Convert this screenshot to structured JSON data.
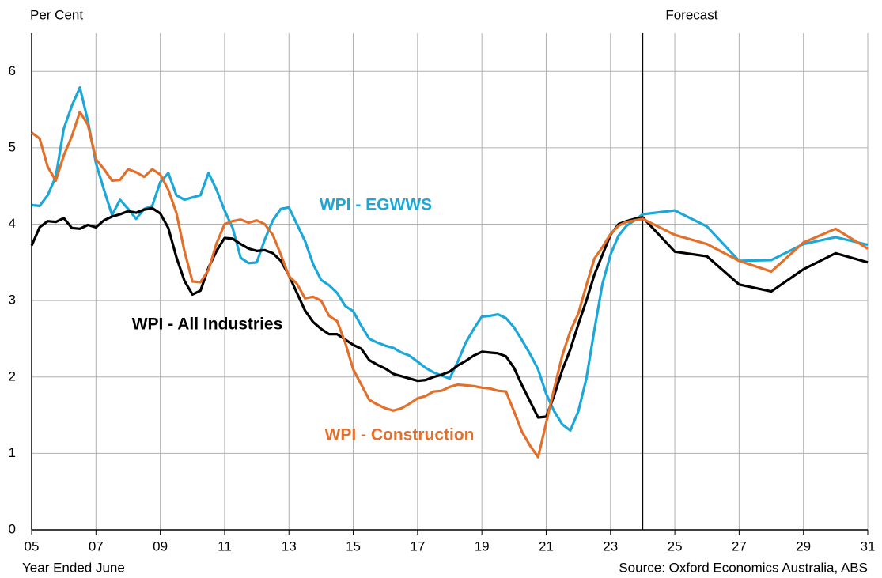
{
  "chart_data": {
    "type": "line",
    "y_label": "Per Cent",
    "x_label": "Year Ended June",
    "source": "Source: Oxford Economics Australia, ABS",
    "forecast_line": {
      "x": 2024,
      "label": "Forecast"
    },
    "xlim": [
      2005,
      2031
    ],
    "ylim": [
      0,
      6.5
    ],
    "xticks": [
      {
        "value": 2005,
        "label": "05"
      },
      {
        "value": 2007,
        "label": "07"
      },
      {
        "value": 2009,
        "label": "09"
      },
      {
        "value": 2011,
        "label": "11"
      },
      {
        "value": 2013,
        "label": "13"
      },
      {
        "value": 2015,
        "label": "15"
      },
      {
        "value": 2017,
        "label": "17"
      },
      {
        "value": 2019,
        "label": "19"
      },
      {
        "value": 2021,
        "label": "21"
      },
      {
        "value": 2023,
        "label": "23"
      },
      {
        "value": 2025,
        "label": "25"
      },
      {
        "value": 2027,
        "label": "27"
      },
      {
        "value": 2029,
        "label": "29"
      },
      {
        "value": 2031,
        "label": "31"
      }
    ],
    "yticks": [
      0,
      1,
      2,
      3,
      4,
      5,
      6
    ],
    "grid": true,
    "x": [
      2005,
      2005.25,
      2005.5,
      2005.75,
      2006,
      2006.25,
      2006.5,
      2006.75,
      2007,
      2007.25,
      2007.5,
      2007.75,
      2008,
      2008.25,
      2008.5,
      2008.75,
      2009,
      2009.25,
      2009.5,
      2009.75,
      2010,
      2010.25,
      2010.5,
      2010.75,
      2011,
      2011.25,
      2011.5,
      2011.75,
      2012,
      2012.25,
      2012.5,
      2012.75,
      2013,
      2013.25,
      2013.5,
      2013.75,
      2014,
      2014.25,
      2014.5,
      2014.75,
      2015,
      2015.25,
      2015.5,
      2015.75,
      2016,
      2016.25,
      2016.5,
      2016.75,
      2017,
      2017.25,
      2017.5,
      2017.75,
      2018,
      2018.25,
      2018.5,
      2018.75,
      2019,
      2019.25,
      2019.5,
      2019.75,
      2020,
      2020.25,
      2020.5,
      2020.75,
      2021,
      2021.25,
      2021.5,
      2021.75,
      2022,
      2022.25,
      2022.5,
      2022.75,
      2023,
      2023.25,
      2023.5,
      2023.75,
      2024,
      2025,
      2026,
      2027,
      2028,
      2029,
      2030,
      2031
    ],
    "series": [
      {
        "name": "WPI - EGWWS",
        "color": "#1ba8d9",
        "values": [
          4.25,
          4.24,
          4.38,
          4.62,
          5.25,
          5.55,
          5.79,
          5.35,
          4.8,
          4.45,
          4.12,
          4.32,
          4.2,
          4.07,
          4.2,
          4.24,
          4.55,
          4.67,
          4.38,
          4.32,
          4.35,
          4.38,
          4.67,
          4.45,
          4.18,
          3.95,
          3.56,
          3.49,
          3.5,
          3.8,
          4.05,
          4.2,
          4.22,
          4.0,
          3.78,
          3.48,
          3.27,
          3.2,
          3.1,
          2.93,
          2.86,
          2.67,
          2.5,
          2.45,
          2.41,
          2.38,
          2.32,
          2.28,
          2.2,
          2.12,
          2.06,
          2.02,
          1.98,
          2.2,
          2.45,
          2.63,
          2.79,
          2.8,
          2.82,
          2.77,
          2.65,
          2.48,
          2.3,
          2.1,
          1.78,
          1.55,
          1.38,
          1.3,
          1.55,
          1.98,
          2.62,
          3.22,
          3.6,
          3.85,
          3.98,
          4.05,
          4.13,
          4.18,
          3.97,
          3.52,
          3.53,
          3.74,
          3.83,
          3.73
        ]
      },
      {
        "name": "WPI - All Industries",
        "color": "#000000",
        "values": [
          3.72,
          3.96,
          4.04,
          4.03,
          4.08,
          3.95,
          3.94,
          3.99,
          3.96,
          4.05,
          4.1,
          4.13,
          4.17,
          4.15,
          4.19,
          4.21,
          4.14,
          3.95,
          3.57,
          3.26,
          3.08,
          3.13,
          3.43,
          3.65,
          3.82,
          3.81,
          3.74,
          3.68,
          3.65,
          3.66,
          3.62,
          3.52,
          3.33,
          3.1,
          2.87,
          2.72,
          2.63,
          2.56,
          2.56,
          2.49,
          2.42,
          2.37,
          2.22,
          2.16,
          2.11,
          2.04,
          2.01,
          1.98,
          1.95,
          1.96,
          2.0,
          2.03,
          2.07,
          2.15,
          2.21,
          2.28,
          2.33,
          2.32,
          2.31,
          2.27,
          2.12,
          1.89,
          1.68,
          1.47,
          1.48,
          1.76,
          2.09,
          2.36,
          2.69,
          3.0,
          3.34,
          3.6,
          3.86,
          4.0,
          4.04,
          4.07,
          4.09,
          3.64,
          3.58,
          3.21,
          3.12,
          3.41,
          3.62,
          3.5
        ]
      },
      {
        "name": "WPI - Construction",
        "color": "#e2702b",
        "values": [
          5.2,
          5.12,
          4.75,
          4.57,
          4.9,
          5.15,
          5.47,
          5.3,
          4.85,
          4.72,
          4.57,
          4.58,
          4.72,
          4.68,
          4.62,
          4.72,
          4.65,
          4.45,
          4.15,
          3.65,
          3.25,
          3.24,
          3.4,
          3.75,
          4.0,
          4.04,
          4.06,
          4.02,
          4.05,
          4.0,
          3.86,
          3.6,
          3.32,
          3.22,
          3.03,
          3.05,
          3.0,
          2.8,
          2.73,
          2.45,
          2.1,
          1.9,
          1.7,
          1.64,
          1.59,
          1.56,
          1.59,
          1.65,
          1.72,
          1.75,
          1.81,
          1.82,
          1.87,
          1.9,
          1.89,
          1.88,
          1.86,
          1.85,
          1.82,
          1.81,
          1.55,
          1.28,
          1.1,
          0.95,
          1.4,
          1.85,
          2.28,
          2.6,
          2.83,
          3.2,
          3.55,
          3.7,
          3.87,
          3.98,
          4.03,
          4.05,
          4.07,
          3.86,
          3.74,
          3.52,
          3.38,
          3.76,
          3.94,
          3.68
        ]
      }
    ]
  }
}
